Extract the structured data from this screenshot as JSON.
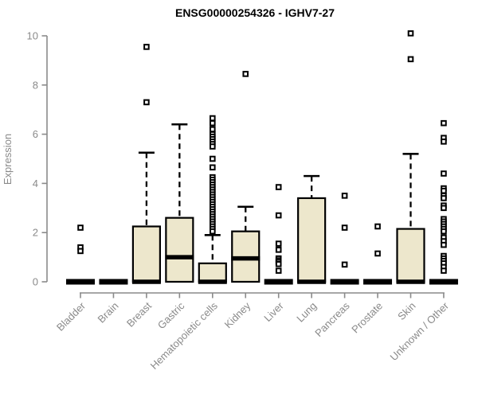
{
  "chart_data": {
    "type": "boxplot",
    "title": "ENSG00000254326 - IGHV7-27",
    "xlabel": "",
    "ylabel": "Expression",
    "ylim": [
      0,
      10
    ],
    "yticks": [
      0,
      2,
      4,
      6,
      8,
      10
    ],
    "grid": false,
    "legend": null,
    "categories": [
      "Bladder",
      "Brain",
      "Breast",
      "Gastric",
      "Hematopoietic cells",
      "Kidney",
      "Liver",
      "Lung",
      "Pancreas",
      "Prostate",
      "Skin",
      "Unknown / Other"
    ],
    "series": [
      {
        "category": "Bladder",
        "q1": 0,
        "median": 0,
        "q3": 0,
        "whisker_low": 0,
        "whisker_high": 0,
        "outliers": [
          2.2,
          1.4,
          1.25
        ]
      },
      {
        "category": "Brain",
        "q1": 0,
        "median": 0,
        "q3": 0,
        "whisker_low": 0,
        "whisker_high": 0,
        "outliers": []
      },
      {
        "category": "Breast",
        "q1": 0,
        "median": 0,
        "q3": 2.25,
        "whisker_low": 0,
        "whisker_high": 5.25,
        "outliers": [
          9.55,
          7.3
        ]
      },
      {
        "category": "Gastric",
        "q1": 0,
        "median": 1.0,
        "q3": 2.6,
        "whisker_low": 0,
        "whisker_high": 6.4,
        "outliers": []
      },
      {
        "category": "Hematopoietic cells",
        "q1": 0,
        "median": 0,
        "q3": 0.75,
        "whisker_low": 0,
        "whisker_high": 1.9,
        "outliers": [
          6.65,
          6.45,
          6.2,
          6.0,
          5.9,
          5.8,
          5.7,
          5.6,
          5.5,
          5.0,
          4.65,
          4.25,
          4.15,
          4.05,
          3.95,
          3.85,
          3.75,
          3.65,
          3.55,
          3.45,
          3.35,
          3.25,
          3.15,
          3.05,
          2.95,
          2.85,
          2.75,
          2.65,
          2.55,
          2.45,
          2.35,
          2.25,
          2.15,
          2.05
        ]
      },
      {
        "category": "Kidney",
        "q1": 0,
        "median": 0.95,
        "q3": 2.05,
        "whisker_low": 0,
        "whisker_high": 3.05,
        "outliers": [
          8.45
        ]
      },
      {
        "category": "Liver",
        "q1": 0,
        "median": 0,
        "q3": 0,
        "whisker_low": 0,
        "whisker_high": 0,
        "outliers": [
          3.85,
          2.7,
          1.55,
          1.3,
          0.95,
          0.87,
          0.8,
          0.72,
          0.45
        ]
      },
      {
        "category": "Lung",
        "q1": 0,
        "median": 0,
        "q3": 3.4,
        "whisker_low": 0,
        "whisker_high": 4.3,
        "outliers": []
      },
      {
        "category": "Pancreas",
        "q1": 0,
        "median": 0,
        "q3": 0,
        "whisker_low": 0,
        "whisker_high": 0,
        "outliers": [
          3.5,
          2.2,
          0.7
        ]
      },
      {
        "category": "Prostate",
        "q1": 0,
        "median": 0,
        "q3": 0,
        "whisker_low": 0,
        "whisker_high": 0,
        "outliers": [
          2.25,
          1.15
        ]
      },
      {
        "category": "Skin",
        "q1": 0,
        "median": 0,
        "q3": 2.15,
        "whisker_low": 0,
        "whisker_high": 5.2,
        "outliers": [
          10.1,
          9.05
        ]
      },
      {
        "category": "Unknown / Other",
        "q1": 0,
        "median": 0,
        "q3": 0,
        "whisker_low": 0,
        "whisker_high": 0,
        "outliers": [
          6.45,
          5.85,
          5.7,
          4.4,
          3.8,
          3.7,
          3.5,
          3.4,
          3.1,
          3.0,
          2.55,
          2.45,
          2.35,
          2.25,
          2.15,
          2.05,
          1.8,
          1.65,
          1.5,
          1.05,
          0.95,
          0.85,
          0.75,
          0.6,
          0.45
        ]
      }
    ],
    "colors": {
      "box_fill": "#EDE7CC",
      "box_border": "#000000",
      "median": "#000000",
      "whisker": "#000000",
      "outlier_stroke": "#000000",
      "outlier_fill": "#ffffff",
      "axis": "#8a8a8a",
      "tick_label": "#8a8a8a",
      "title": "#000000"
    }
  }
}
